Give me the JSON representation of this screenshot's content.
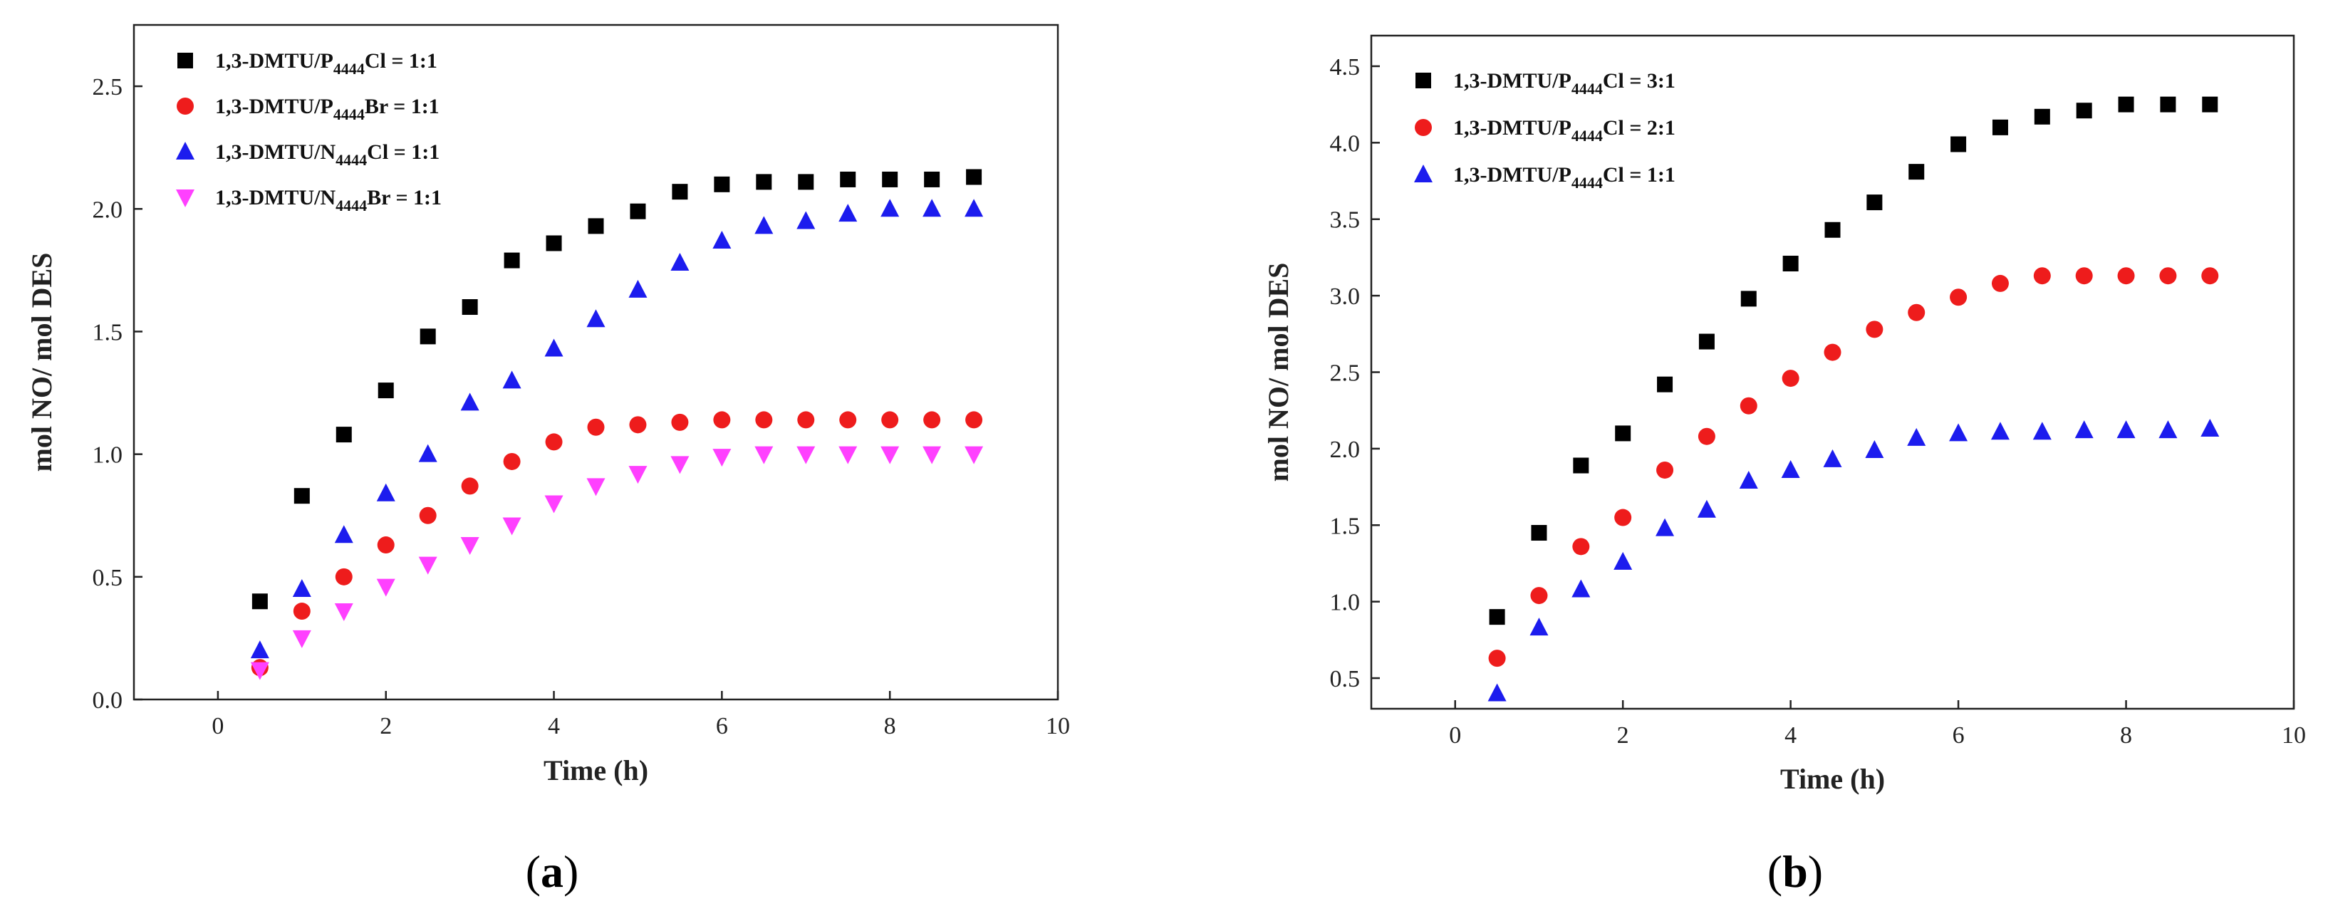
{
  "figure": {
    "panel_a": {
      "open": "(",
      "letter": "a",
      "close": ")"
    },
    "panel_b": {
      "open": "(",
      "letter": "b",
      "close": ")"
    }
  },
  "colors": {
    "black": "#000000",
    "red": "#ee1c1c",
    "blue": "#1c1cee",
    "magenta": "#ff40ff"
  },
  "chart_data": [
    {
      "type": "scatter",
      "title": "",
      "xlabel": "Time (h)",
      "ylabel": "mol NO/ mol DES",
      "xlim": [
        -1,
        10
      ],
      "ylim": [
        0,
        2.75
      ],
      "xticks": [
        0,
        2,
        4,
        6,
        8,
        10
      ],
      "yticks": [
        0.0,
        0.5,
        1.0,
        1.5,
        2.0,
        2.5
      ],
      "ytick_labels": [
        "0.0",
        "0.5",
        "1.0",
        "1.5",
        "2.0",
        "2.5"
      ],
      "legend_position": "top-left",
      "x": [
        0.5,
        1,
        1.5,
        2,
        2.5,
        3,
        3.5,
        4,
        4.5,
        5,
        5.5,
        6,
        6.5,
        7,
        7.5,
        8,
        8.5,
        9
      ],
      "series": [
        {
          "name": "1,3-DMTU/P4444Cl = 1:1",
          "label_pre": "1,3-DMTU/P",
          "label_sub": "4444",
          "label_post": "Cl = 1:1",
          "marker": "square",
          "color": "black",
          "values": [
            0.4,
            0.83,
            1.08,
            1.26,
            1.48,
            1.6,
            1.79,
            1.86,
            1.93,
            1.99,
            2.07,
            2.1,
            2.11,
            2.11,
            2.12,
            2.12,
            2.12,
            2.13
          ]
        },
        {
          "name": "1,3-DMTU/P4444Br = 1:1",
          "label_pre": "1,3-DMTU/P",
          "label_sub": "4444",
          "label_post": "Br = 1:1",
          "marker": "circle",
          "color": "red",
          "values": [
            0.13,
            0.36,
            0.5,
            0.63,
            0.75,
            0.87,
            0.97,
            1.05,
            1.11,
            1.12,
            1.13,
            1.14,
            1.14,
            1.14,
            1.14,
            1.14,
            1.14,
            1.14
          ]
        },
        {
          "name": "1,3-DMTU/N4444Cl = 1:1",
          "label_pre": "1,3-DMTU/N",
          "label_sub": "4444",
          "label_post": "Cl = 1:1",
          "marker": "triangle-up",
          "color": "blue",
          "values": [
            0.2,
            0.45,
            0.67,
            0.84,
            1.0,
            1.21,
            1.3,
            1.43,
            1.55,
            1.67,
            1.78,
            1.87,
            1.93,
            1.95,
            1.98,
            2.0,
            2.0,
            2.0
          ]
        },
        {
          "name": "1,3-DMTU/N4444Br = 1:1",
          "label_pre": "1,3-DMTU/N",
          "label_sub": "4444",
          "label_post": "Br = 1:1",
          "marker": "triangle-down",
          "color": "magenta",
          "values": [
            0.12,
            0.25,
            0.36,
            0.46,
            0.55,
            0.63,
            0.71,
            0.8,
            0.87,
            0.92,
            0.96,
            0.99,
            1.0,
            1.0,
            1.0,
            1.0,
            1.0,
            1.0
          ]
        }
      ]
    },
    {
      "type": "scatter",
      "title": "",
      "xlabel": "Time (h)",
      "ylabel": "mol NO/ mol DES",
      "xlim": [
        -1,
        10
      ],
      "ylim": [
        0.3,
        4.7
      ],
      "xticks": [
        0,
        2,
        4,
        6,
        8,
        10
      ],
      "yticks": [
        0.5,
        1.0,
        1.5,
        2.0,
        2.5,
        3.0,
        3.5,
        4.0,
        4.5
      ],
      "ytick_labels": [
        "0.5",
        "1.0",
        "1.5",
        "2.0",
        "2.5",
        "3.0",
        "3.5",
        "4.0",
        "4.5"
      ],
      "legend_position": "top-left",
      "x": [
        0.5,
        1,
        1.5,
        2,
        2.5,
        3,
        3.5,
        4,
        4.5,
        5,
        5.5,
        6,
        6.5,
        7,
        7.5,
        8,
        8.5,
        9
      ],
      "series": [
        {
          "name": "1,3-DMTU/P4444Cl = 3:1",
          "label_pre": "1,3-DMTU/P",
          "label_sub": "4444",
          "label_post": "Cl = 3:1",
          "marker": "square",
          "color": "black",
          "values": [
            0.9,
            1.45,
            1.89,
            2.1,
            2.42,
            2.7,
            2.98,
            3.21,
            3.43,
            3.61,
            3.81,
            3.99,
            4.1,
            4.17,
            4.21,
            4.25,
            4.25,
            4.25
          ]
        },
        {
          "name": "1,3-DMTU/P4444Cl = 2:1",
          "label_pre": "1,3-DMTU/P",
          "label_sub": "4444",
          "label_post": "Cl = 2:1",
          "marker": "circle",
          "color": "red",
          "values": [
            0.63,
            1.04,
            1.36,
            1.55,
            1.86,
            2.08,
            2.28,
            2.46,
            2.63,
            2.78,
            2.89,
            2.99,
            3.08,
            3.13,
            3.13,
            3.13,
            3.13,
            3.13
          ]
        },
        {
          "name": "1,3-DMTU/P4444Cl = 1:1",
          "label_pre": "1,3-DMTU/P",
          "label_sub": "4444",
          "label_post": "Cl = 1:1",
          "marker": "triangle-up",
          "color": "blue",
          "values": [
            0.4,
            0.83,
            1.08,
            1.26,
            1.48,
            1.6,
            1.79,
            1.86,
            1.93,
            1.99,
            2.07,
            2.1,
            2.11,
            2.11,
            2.12,
            2.12,
            2.12,
            2.13
          ]
        }
      ]
    }
  ]
}
